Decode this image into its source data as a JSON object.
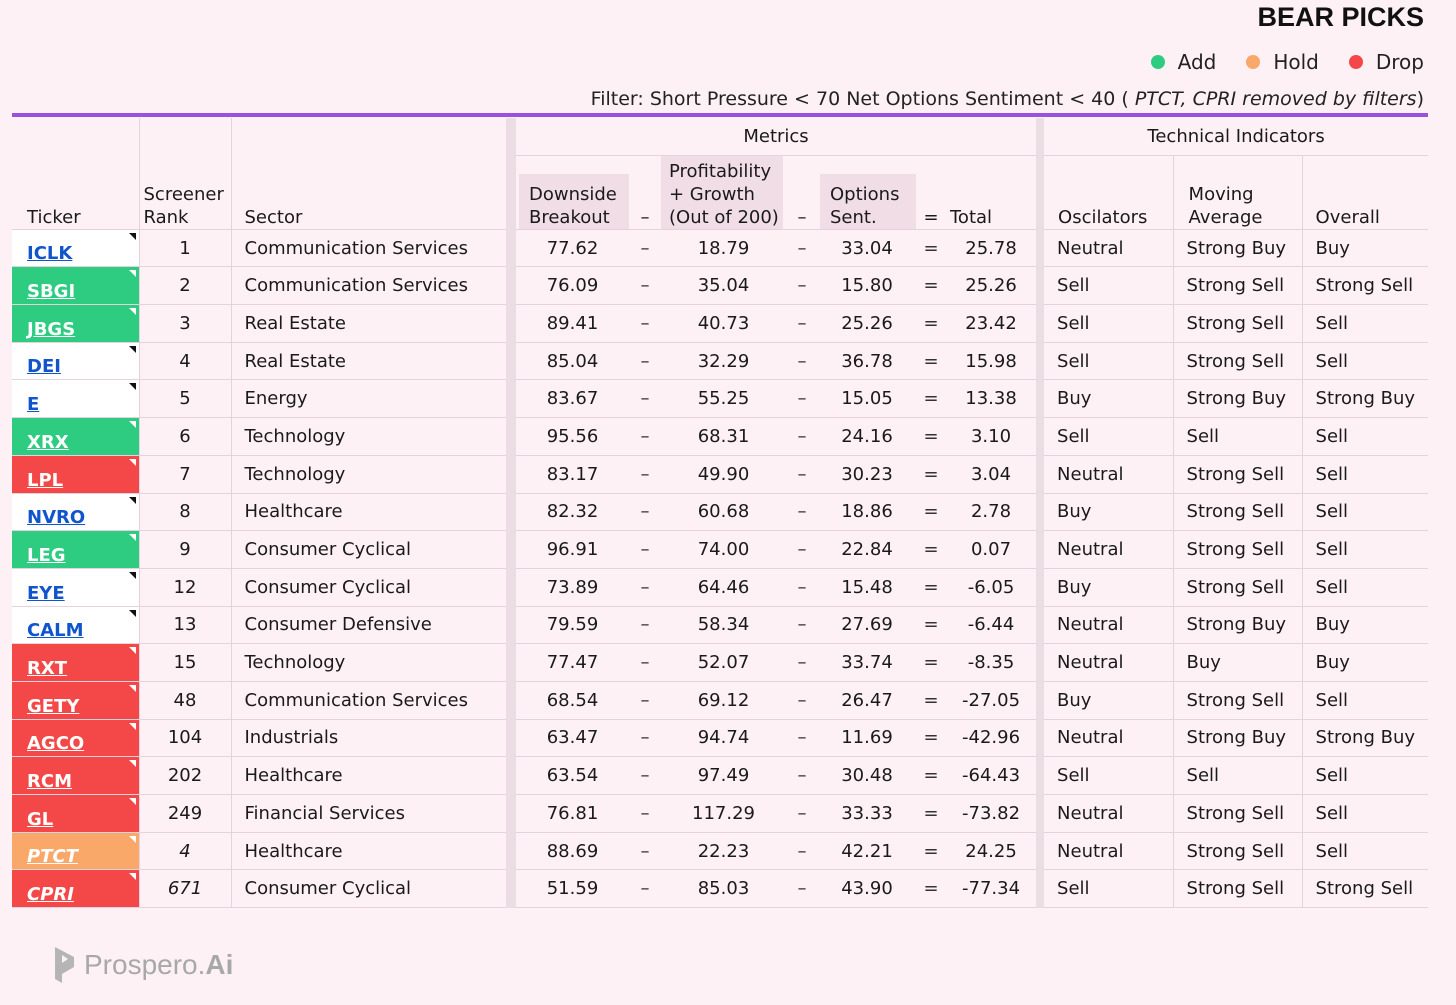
{
  "header": {
    "title": "BEAR PICKS",
    "legend": [
      {
        "label": "Add",
        "color": "#2ecc80"
      },
      {
        "label": "Hold",
        "color": "#f9a86a"
      },
      {
        "label": "Drop",
        "color": "#f44848"
      }
    ],
    "filter_text": "Filter: Short Pressure < 70  Net Options Sentiment < 40 ( ",
    "filter_note": "PTCT, CPRI removed by filters",
    "filter_close": ")"
  },
  "groups": {
    "metrics": "Metrics",
    "technical": "Technical Indicators"
  },
  "columns": {
    "ticker": "Ticker",
    "rank_1": "Screener",
    "rank_2": "Rank",
    "sector": "Sector",
    "downside_1": "Downside",
    "downside_2": "Breakout",
    "minus": "–",
    "profit_1": "Profitability",
    "profit_2": "+ Growth",
    "profit_3": "(Out of 200)",
    "options_1": "Options",
    "options_2": "Sent.",
    "equals": "=",
    "total": "Total",
    "oscillators": "Oscilators",
    "ma_1": "Moving",
    "ma_2": "Average",
    "overall": "Overall"
  },
  "rows": [
    {
      "ticker": "ICLK",
      "status": "none",
      "rank": "1",
      "sector": "Communication Services",
      "downside": "77.62",
      "profit": "18.79",
      "options": "33.04",
      "total": "25.78",
      "osc": "Neutral",
      "ma": "Strong Buy",
      "overall": "Buy"
    },
    {
      "ticker": "SBGI",
      "status": "add",
      "rank": "2",
      "sector": "Communication Services",
      "downside": "76.09",
      "profit": "35.04",
      "options": "15.80",
      "total": "25.26",
      "osc": "Sell",
      "ma": "Strong Sell",
      "overall": "Strong Sell"
    },
    {
      "ticker": "JBGS",
      "status": "add",
      "rank": "3",
      "sector": "Real Estate",
      "downside": "89.41",
      "profit": "40.73",
      "options": "25.26",
      "total": "23.42",
      "osc": "Sell",
      "ma": "Strong Sell",
      "overall": "Sell"
    },
    {
      "ticker": "DEI",
      "status": "none",
      "rank": "4",
      "sector": "Real Estate",
      "downside": "85.04",
      "profit": "32.29",
      "options": "36.78",
      "total": "15.98",
      "osc": "Sell",
      "ma": "Strong Sell",
      "overall": "Sell"
    },
    {
      "ticker": "E",
      "status": "none",
      "rank": "5",
      "sector": "Energy",
      "downside": "83.67",
      "profit": "55.25",
      "options": "15.05",
      "total": "13.38",
      "osc": "Buy",
      "ma": "Strong Buy",
      "overall": "Strong Buy"
    },
    {
      "ticker": "XRX",
      "status": "add",
      "rank": "6",
      "sector": "Technology",
      "downside": "95.56",
      "profit": "68.31",
      "options": "24.16",
      "total": "3.10",
      "osc": "Sell",
      "ma": "Sell",
      "overall": "Sell"
    },
    {
      "ticker": "LPL",
      "status": "drop",
      "rank": "7",
      "sector": "Technology",
      "downside": "83.17",
      "profit": "49.90",
      "options": "30.23",
      "total": "3.04",
      "osc": "Neutral",
      "ma": "Strong Sell",
      "overall": "Sell"
    },
    {
      "ticker": "NVRO",
      "status": "none",
      "rank": "8",
      "sector": "Healthcare",
      "downside": "82.32",
      "profit": "60.68",
      "options": "18.86",
      "total": "2.78",
      "osc": "Buy",
      "ma": "Strong Sell",
      "overall": "Sell"
    },
    {
      "ticker": "LEG",
      "status": "add",
      "rank": "9",
      "sector": "Consumer Cyclical",
      "downside": "96.91",
      "profit": "74.00",
      "options": "22.84",
      "total": "0.07",
      "osc": "Neutral",
      "ma": "Strong Sell",
      "overall": "Sell"
    },
    {
      "ticker": "EYE",
      "status": "none",
      "rank": "12",
      "sector": "Consumer Cyclical",
      "downside": "73.89",
      "profit": "64.46",
      "options": "15.48",
      "total": "-6.05",
      "osc": "Buy",
      "ma": "Strong Sell",
      "overall": "Sell"
    },
    {
      "ticker": "CALM",
      "status": "none",
      "rank": "13",
      "sector": "Consumer Defensive",
      "downside": "79.59",
      "profit": "58.34",
      "options": "27.69",
      "total": "-6.44",
      "osc": "Neutral",
      "ma": "Strong Buy",
      "overall": "Buy"
    },
    {
      "ticker": "RXT",
      "status": "drop",
      "rank": "15",
      "sector": "Technology",
      "downside": "77.47",
      "profit": "52.07",
      "options": "33.74",
      "total": "-8.35",
      "osc": "Neutral",
      "ma": "Buy",
      "overall": "Buy"
    },
    {
      "ticker": "GETY",
      "status": "drop",
      "rank": "48",
      "sector": "Communication Services",
      "downside": "68.54",
      "profit": "69.12",
      "options": "26.47",
      "total": "-27.05",
      "osc": "Buy",
      "ma": "Strong Sell",
      "overall": "Sell"
    },
    {
      "ticker": "AGCO",
      "status": "drop",
      "rank": "104",
      "sector": "Industrials",
      "downside": "63.47",
      "profit": "94.74",
      "options": "11.69",
      "total": "-42.96",
      "osc": "Neutral",
      "ma": "Strong Buy",
      "overall": "Strong Buy"
    },
    {
      "ticker": "RCM",
      "status": "drop",
      "rank": "202",
      "sector": "Healthcare",
      "downside": "63.54",
      "profit": "97.49",
      "options": "30.48",
      "total": "-64.43",
      "osc": "Sell",
      "ma": "Sell",
      "overall": "Sell"
    },
    {
      "ticker": "GL",
      "status": "drop",
      "rank": "249",
      "sector": "Financial Services",
      "downside": "76.81",
      "profit": "117.29",
      "options": "33.33",
      "total": "-73.82",
      "osc": "Neutral",
      "ma": "Strong Sell",
      "overall": "Sell"
    },
    {
      "ticker": "PTCT",
      "status": "hold",
      "italic": true,
      "rank": "4",
      "sector": "Healthcare",
      "downside": "88.69",
      "profit": "22.23",
      "options": "42.21",
      "total": "24.25",
      "osc": "Neutral",
      "ma": "Strong Sell",
      "overall": "Sell"
    },
    {
      "ticker": "CPRI",
      "status": "drop",
      "italic": true,
      "rank": "671",
      "sector": "Consumer Cyclical",
      "downside": "51.59",
      "profit": "85.03",
      "options": "43.90",
      "total": "-77.34",
      "osc": "Sell",
      "ma": "Strong Sell",
      "overall": "Strong Sell"
    }
  ],
  "footer": {
    "brand": "Prospero.",
    "brand_suffix": "Ai"
  }
}
